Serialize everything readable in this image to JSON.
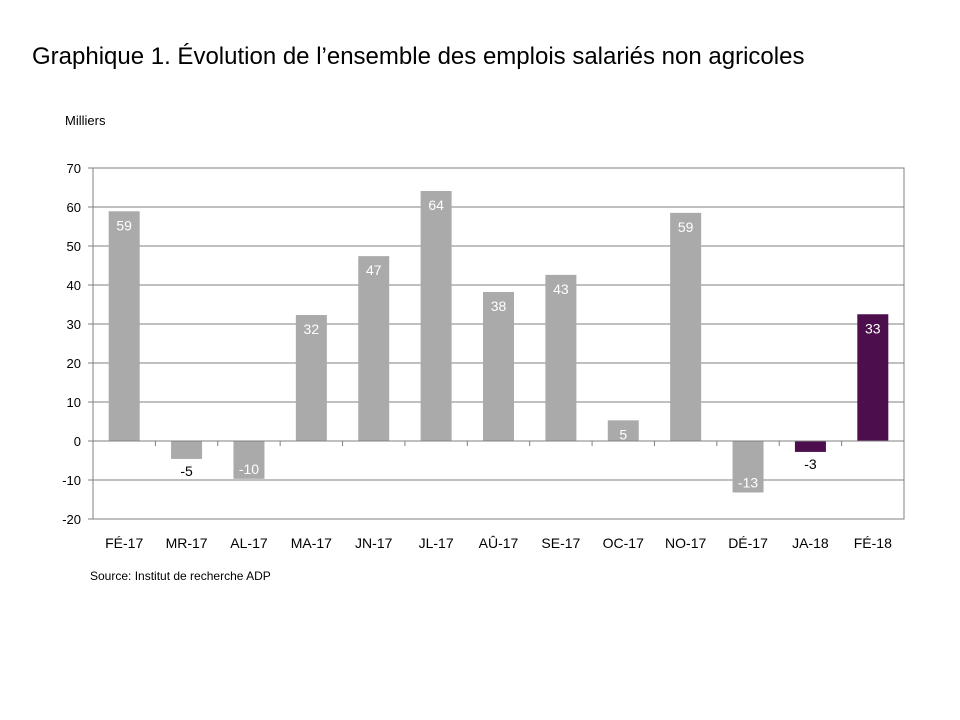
{
  "header": {
    "title": "Graphique 1. Évolution de l’ensemble des emplois salariés non agricoles"
  },
  "footer": {
    "source": "Source: Institut de recherche ADP"
  },
  "chart_data": {
    "type": "bar",
    "ylabel": "Milliers",
    "ylim": [
      -20,
      70
    ],
    "yticks": [
      70,
      60,
      50,
      40,
      30,
      20,
      10,
      0,
      -10,
      -20
    ],
    "grid": true,
    "categories": [
      "FÉ-17",
      "MR-17",
      "AL-17",
      "MA-17",
      "JN-17",
      "JL-17",
      "AÛ-17",
      "SE-17",
      "OC-17",
      "NO-17",
      "DÉ-17",
      "JA-18",
      "FÉ-18"
    ],
    "values": [
      58.9,
      -4.6,
      -9.7,
      32.3,
      47.4,
      64.1,
      38.2,
      42.6,
      5.3,
      58.5,
      -13.2,
      -2.8,
      32.5
    ],
    "labels": [
      "59",
      "-5",
      "-10",
      "32",
      "47",
      "64",
      "38",
      "43",
      "5",
      "59",
      "-13",
      "-3",
      "33"
    ],
    "colors": [
      "#aaaaaa",
      "#aaaaaa",
      "#aaaaaa",
      "#aaaaaa",
      "#aaaaaa",
      "#aaaaaa",
      "#aaaaaa",
      "#aaaaaa",
      "#aaaaaa",
      "#aaaaaa",
      "#aaaaaa",
      "#4d0e4e",
      "#4d0e4e"
    ],
    "label_colors": [
      "#ffffff",
      "#000000",
      "#ffffff",
      "#ffffff",
      "#ffffff",
      "#ffffff",
      "#ffffff",
      "#ffffff",
      "#ffffff",
      "#ffffff",
      "#ffffff",
      "#000000",
      "#ffffff"
    ]
  }
}
